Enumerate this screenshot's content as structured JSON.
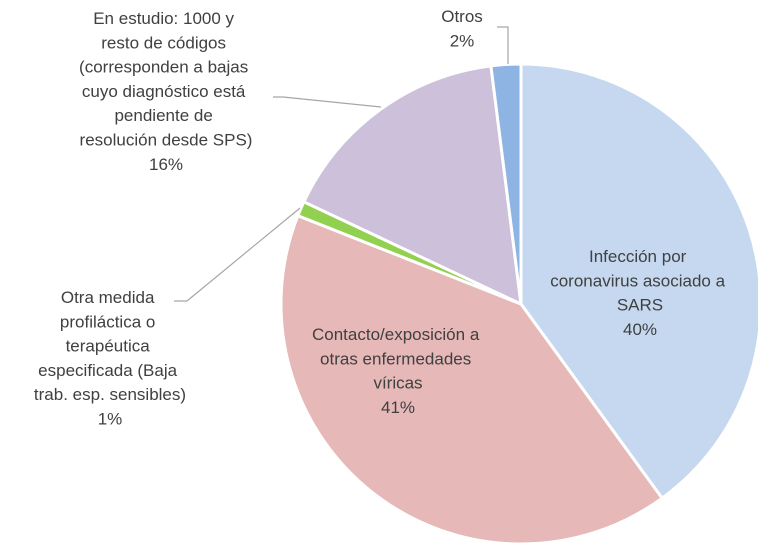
{
  "chart_data": {
    "type": "pie",
    "categories": [
      "Infección por coronavirus asociado a SARS",
      "Contacto/exposición a otras enfermedades víricas",
      "Otra medida profiláctica o terapéutica especificada (Baja trab. esp. sensibles)",
      "En estudio: 1000 y resto de códigos (corresponden a bajas cuyo diagnóstico está pendiente de resolución desde SPS)",
      "Otros"
    ],
    "values": [
      40,
      41,
      1,
      16,
      2
    ],
    "value_labels": [
      "40%",
      "41%",
      "1%",
      "16%",
      "2%"
    ],
    "colors": [
      "#c5d8f0",
      "#e6b8b7",
      "#92d050",
      "#ccc0da",
      "#8db4e2"
    ]
  }
}
